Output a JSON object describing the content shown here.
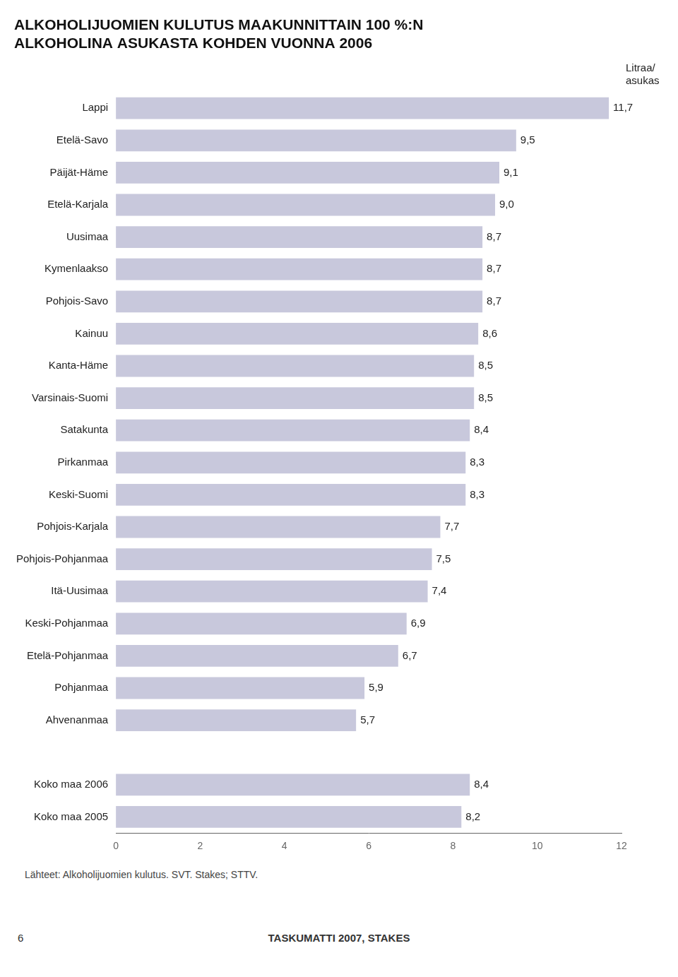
{
  "chart_data": {
    "type": "bar",
    "orientation": "horizontal",
    "title": [
      "ALKOHOLIJUOMIEN KULUTUS MAAKUNNITTAIN 100 %:N",
      "ALKOHOLINA ASUKASTA KOHDEN VUONNA 2006"
    ],
    "unit_label": "Litraa/\nasukas",
    "categories": [
      "Lappi",
      "Etelä-Savo",
      "Päijät-Häme",
      "Etelä-Karjala",
      "Uusimaa",
      "Kymenlaakso",
      "Pohjois-Savo",
      "Kainuu",
      "Kanta-Häme",
      "Varsinais-Suomi",
      "Satakunta",
      "Pirkanmaa",
      "Keski-Suomi",
      "Pohjois-Karjala",
      "Pohjois-Pohjanmaa",
      "Itä-Uusimaa",
      "Keski-Pohjanmaa",
      "Etelä-Pohjanmaa",
      "Pohjanmaa",
      "Ahvenanmaa",
      null,
      "Koko maa 2006",
      "Koko maa 2005"
    ],
    "values": [
      11.7,
      9.5,
      9.1,
      9.0,
      8.7,
      8.7,
      8.7,
      8.6,
      8.5,
      8.5,
      8.4,
      8.3,
      8.3,
      7.7,
      7.5,
      7.4,
      6.9,
      6.7,
      5.9,
      5.7,
      null,
      8.4,
      8.2
    ],
    "value_labels": [
      "11,7",
      "9,5",
      "9,1",
      "9,0",
      "8,7",
      "8,7",
      "8,7",
      "8,6",
      "8,5",
      "8,5",
      "8,4",
      "8,3",
      "8,3",
      "7,7",
      "7,5",
      "7,4",
      "6,9",
      "6,7",
      "5,9",
      "5,7",
      null,
      "8,4",
      "8,2"
    ],
    "data_labels": true,
    "color": "#c8c8dc",
    "xlim": [
      0,
      12
    ],
    "xticks": [
      0,
      2,
      4,
      6,
      8,
      10,
      12
    ],
    "grid": false,
    "source": "Lähteet: Alkoholijuomien kulutus. SVT. Stakes; STTV.",
    "footer": [
      "6",
      "TASKUMATTI 2007, STAKES"
    ]
  }
}
